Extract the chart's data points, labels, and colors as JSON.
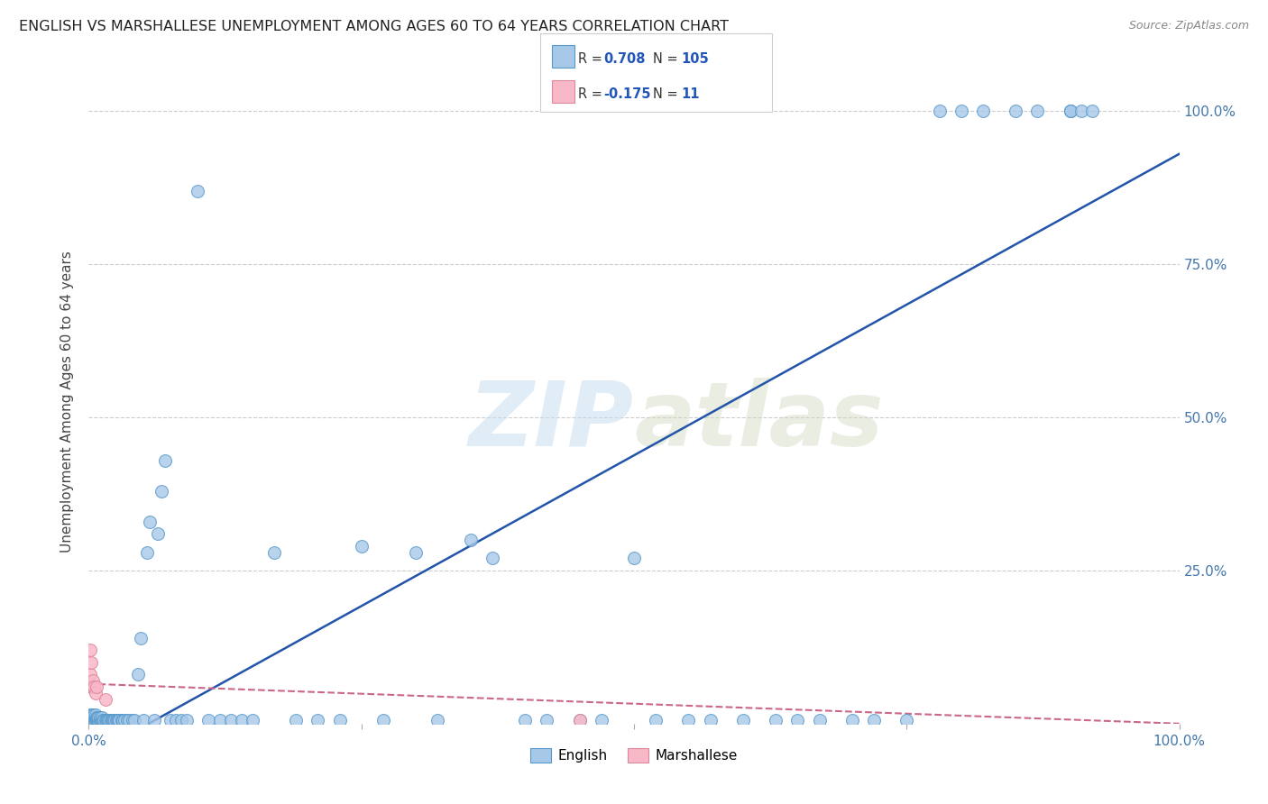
{
  "title": "ENGLISH VS MARSHALLESE UNEMPLOYMENT AMONG AGES 60 TO 64 YEARS CORRELATION CHART",
  "source": "Source: ZipAtlas.com",
  "ylabel": "Unemployment Among Ages 60 to 64 years",
  "ytick_labels": [
    "",
    "25.0%",
    "50.0%",
    "75.0%",
    "100.0%"
  ],
  "yticks": [
    0.0,
    0.25,
    0.5,
    0.75,
    1.0
  ],
  "xtick_labels": [
    "0.0%",
    "",
    "",
    "",
    "100.0%"
  ],
  "xticks": [
    0.0,
    0.25,
    0.5,
    0.75,
    1.0
  ],
  "english_R": 0.708,
  "english_N": 105,
  "marshallese_R": -0.175,
  "marshallese_N": 11,
  "english_dot_color": "#a8c8e8",
  "english_edge_color": "#5599cc",
  "english_line_color": "#2255aa",
  "marshallese_dot_color": "#f8b8c8",
  "marshallese_edge_color": "#dd8899",
  "marshallese_line_color": "#cc6688",
  "background_color": "#ffffff",
  "grid_color": "#cccccc",
  "watermark_color": "#c8ddf0",
  "english_x": [
    0.001,
    0.001,
    0.001,
    0.002,
    0.002,
    0.002,
    0.003,
    0.003,
    0.003,
    0.004,
    0.004,
    0.005,
    0.005,
    0.005,
    0.006,
    0.006,
    0.006,
    0.007,
    0.007,
    0.008,
    0.008,
    0.009,
    0.009,
    0.01,
    0.01,
    0.011,
    0.012,
    0.012,
    0.013,
    0.014,
    0.015,
    0.016,
    0.017,
    0.018,
    0.019,
    0.02,
    0.021,
    0.022,
    0.023,
    0.024,
    0.025,
    0.026,
    0.027,
    0.028,
    0.03,
    0.031,
    0.033,
    0.035,
    0.037,
    0.04,
    0.042,
    0.045,
    0.048,
    0.05,
    0.053,
    0.056,
    0.06,
    0.063,
    0.067,
    0.07,
    0.075,
    0.08,
    0.085,
    0.09,
    0.1,
    0.11,
    0.12,
    0.13,
    0.14,
    0.15,
    0.17,
    0.19,
    0.21,
    0.23,
    0.25,
    0.27,
    0.3,
    0.32,
    0.35,
    0.37,
    0.4,
    0.42,
    0.45,
    0.47,
    0.5,
    0.52,
    0.55,
    0.57,
    0.6,
    0.63,
    0.65,
    0.67,
    0.7,
    0.72,
    0.75,
    0.78,
    0.8,
    0.82,
    0.85,
    0.87,
    0.9,
    0.9,
    0.9,
    0.91,
    0.92
  ],
  "english_y": [
    0.005,
    0.01,
    0.015,
    0.005,
    0.01,
    0.015,
    0.005,
    0.01,
    0.015,
    0.005,
    0.01,
    0.005,
    0.01,
    0.015,
    0.005,
    0.01,
    0.015,
    0.005,
    0.01,
    0.005,
    0.01,
    0.005,
    0.01,
    0.005,
    0.01,
    0.005,
    0.005,
    0.01,
    0.005,
    0.005,
    0.005,
    0.005,
    0.005,
    0.005,
    0.005,
    0.005,
    0.005,
    0.005,
    0.005,
    0.005,
    0.005,
    0.005,
    0.005,
    0.005,
    0.005,
    0.005,
    0.005,
    0.005,
    0.005,
    0.005,
    0.005,
    0.08,
    0.14,
    0.005,
    0.28,
    0.33,
    0.005,
    0.31,
    0.38,
    0.43,
    0.005,
    0.005,
    0.005,
    0.005,
    0.87,
    0.005,
    0.005,
    0.005,
    0.005,
    0.005,
    0.28,
    0.005,
    0.005,
    0.005,
    0.29,
    0.005,
    0.28,
    0.005,
    0.3,
    0.27,
    0.005,
    0.005,
    0.005,
    0.005,
    0.27,
    0.005,
    0.005,
    0.005,
    0.005,
    0.005,
    0.005,
    0.005,
    0.005,
    0.005,
    0.005,
    1.0,
    1.0,
    1.0,
    1.0,
    1.0,
    1.0,
    1.0,
    1.0,
    1.0,
    1.0
  ],
  "marshallese_x": [
    0.001,
    0.001,
    0.002,
    0.002,
    0.003,
    0.004,
    0.005,
    0.006,
    0.007,
    0.015,
    0.45
  ],
  "marshallese_y": [
    0.08,
    0.12,
    0.06,
    0.1,
    0.06,
    0.07,
    0.06,
    0.05,
    0.06,
    0.04,
    0.005
  ],
  "eng_trend_x0": 0.055,
  "eng_trend_y0": 0.0,
  "eng_trend_x1": 1.0,
  "eng_trend_y1": 0.93,
  "mar_trend_x0": 0.0,
  "mar_trend_y0": 0.065,
  "mar_trend_x1": 1.0,
  "mar_trend_y1": 0.0
}
